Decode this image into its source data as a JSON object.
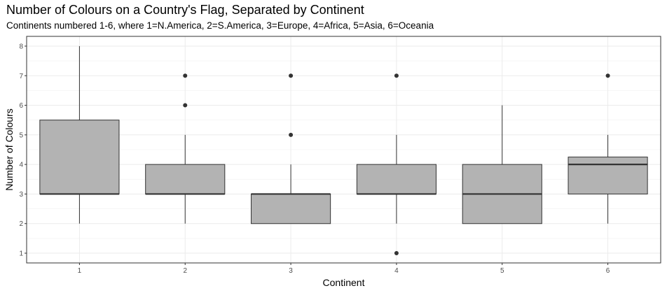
{
  "chart_data": {
    "type": "boxplot",
    "title": "Number of Colours on a Country's Flag, Separated by Continent",
    "subtitle": "Continents numbered 1-6, where 1=N.America, 2=S.America, 3=Europe, 4=Africa, 5=Asia, 6=Oceania",
    "xlabel": "Continent",
    "ylabel": "Number of Colours",
    "categories": [
      "1",
      "2",
      "3",
      "4",
      "5",
      "6"
    ],
    "y_ticks": [
      "1",
      "2",
      "3",
      "4",
      "5",
      "6",
      "7",
      "8"
    ],
    "ylim": [
      0.67,
      8.33
    ],
    "grid": true,
    "box_fill": "#b3b3b3",
    "line_color": "#333333",
    "boxes": [
      {
        "category": "1",
        "min": 2,
        "q1": 3,
        "median": 3,
        "q3": 5.5,
        "max": 8,
        "outliers": []
      },
      {
        "category": "2",
        "min": 2,
        "q1": 3,
        "median": 3,
        "q3": 4,
        "max": 5,
        "outliers": [
          6,
          7
        ]
      },
      {
        "category": "3",
        "min": 2,
        "q1": 2,
        "median": 3,
        "q3": 3,
        "max": 4,
        "outliers": [
          5,
          7
        ]
      },
      {
        "category": "4",
        "min": 2,
        "q1": 3,
        "median": 3,
        "q3": 4,
        "max": 5,
        "outliers": [
          1,
          7
        ]
      },
      {
        "category": "5",
        "min": 2,
        "q1": 2,
        "median": 3,
        "q3": 4,
        "max": 6,
        "outliers": []
      },
      {
        "category": "6",
        "min": 2,
        "q1": 3,
        "median": 4,
        "q3": 4.25,
        "max": 5,
        "outliers": [
          7
        ]
      }
    ]
  }
}
